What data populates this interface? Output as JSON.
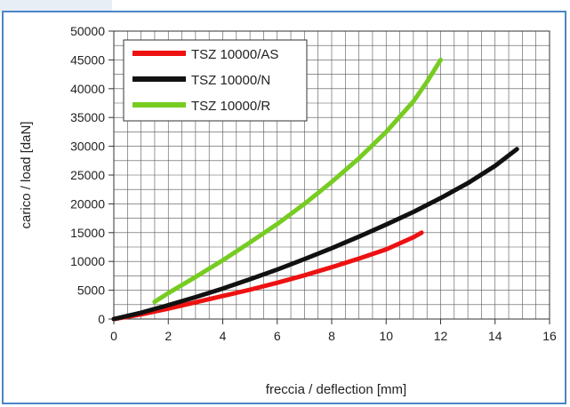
{
  "chart_data": {
    "type": "line",
    "title": "",
    "xlabel": "freccia / deflection [mm]",
    "ylabel": "carico / load [daN]",
    "xlim": [
      0,
      16
    ],
    "ylim": [
      0,
      50000
    ],
    "xticks": [
      0,
      2,
      4,
      6,
      8,
      10,
      12,
      14,
      16
    ],
    "yticks": [
      0,
      5000,
      10000,
      15000,
      20000,
      25000,
      30000,
      35000,
      40000,
      45000,
      50000
    ],
    "grid": true,
    "legend_position": "top-left",
    "series": [
      {
        "name": "TSZ 10000/AS",
        "color": "#ee1111",
        "x": [
          0,
          1,
          2,
          3,
          4,
          5,
          6,
          7,
          8,
          9,
          10,
          11,
          11.3
        ],
        "y": [
          0,
          800,
          1800,
          2900,
          4000,
          5100,
          6300,
          7600,
          9000,
          10500,
          12100,
          14200,
          15000
        ]
      },
      {
        "name": "TSZ 10000/N",
        "color": "#111111",
        "x": [
          0,
          1,
          2,
          3,
          4,
          5,
          6,
          7,
          8,
          9,
          10,
          11,
          12,
          13,
          14,
          14.8
        ],
        "y": [
          0,
          1100,
          2400,
          3800,
          5300,
          6900,
          8600,
          10400,
          12300,
          14300,
          16400,
          18600,
          21000,
          23600,
          26600,
          29500
        ]
      },
      {
        "name": "TSZ 10000/R",
        "color": "#77cc22",
        "x": [
          1.5,
          2,
          3,
          4,
          5,
          6,
          7,
          8,
          9,
          10,
          11,
          11.5,
          12
        ],
        "y": [
          3000,
          4500,
          7300,
          10200,
          13300,
          16500,
          20000,
          23800,
          27900,
          32500,
          37800,
          41200,
          45000
        ]
      }
    ]
  }
}
